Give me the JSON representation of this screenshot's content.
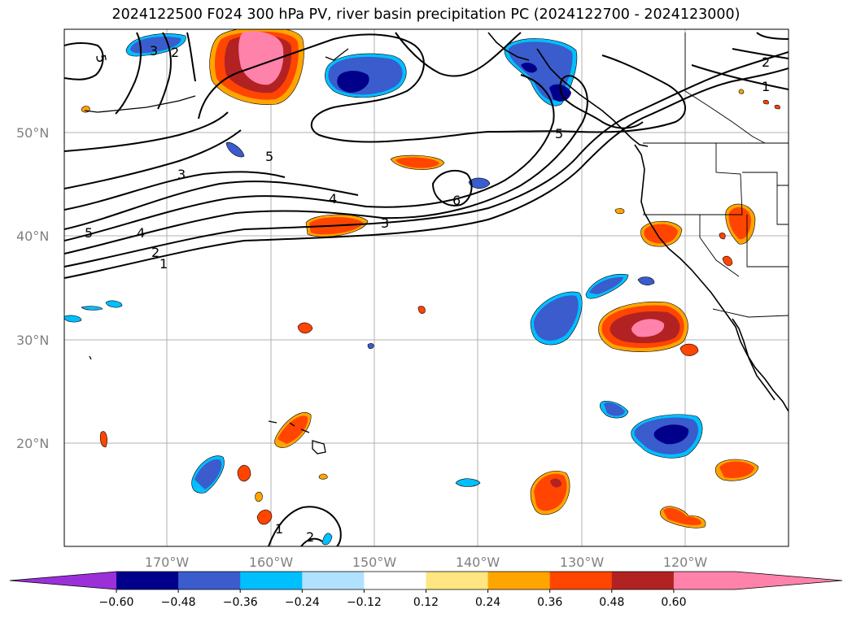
{
  "title": "2024122500 F024 300 hPa PV, river basin precipitation PC (2024122700 - 2024123000)",
  "map": {
    "lat_labels": [
      "50°N",
      "40°N",
      "30°N",
      "20°N"
    ],
    "lon_labels": [
      "170°W",
      "160°W",
      "150°W",
      "140°W",
      "130°W",
      "120°W"
    ],
    "contour_labels": [
      "5",
      "3",
      "2",
      "3",
      "5",
      "4",
      "3",
      "6",
      "5",
      "4",
      "2",
      "1",
      "5",
      "2",
      "1",
      "1",
      "2"
    ]
  },
  "colorbar": {
    "tick_labels": [
      "−0.60",
      "−0.48",
      "−0.36",
      "−0.24",
      "−0.12",
      "0.12",
      "0.24",
      "0.36",
      "0.48",
      "0.60"
    ],
    "colors": [
      "#9b30d9",
      "#00008b",
      "#3a5ccc",
      "#00bfff",
      "#b0e2ff",
      "#ffffff",
      "#ffe680",
      "#ffa500",
      "#ff4500",
      "#b22222",
      "#ff82ab",
      "#ff82ab"
    ]
  }
}
